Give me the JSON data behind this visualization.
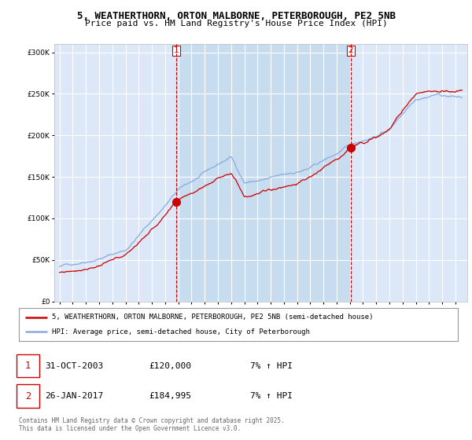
{
  "title": "5, WEATHERTHORN, ORTON MALBORNE, PETERBOROUGH, PE2 5NB",
  "subtitle": "Price paid vs. HM Land Registry's House Price Index (HPI)",
  "legend_line1": "5, WEATHERTHORN, ORTON MALBORNE, PETERBOROUGH, PE2 5NB (semi-detached house)",
  "legend_line2": "HPI: Average price, semi-detached house, City of Peterborough",
  "sale1_label": "1",
  "sale1_date": "31-OCT-2003",
  "sale1_price": "£120,000",
  "sale1_hpi": "7% ↑ HPI",
  "sale2_label": "2",
  "sale2_date": "26-JAN-2017",
  "sale2_price": "£184,995",
  "sale2_hpi": "7% ↑ HPI",
  "footer": "Contains HM Land Registry data © Crown copyright and database right 2025.\nThis data is licensed under the Open Government Licence v3.0.",
  "plot_background": "#dce8f8",
  "highlight_background": "#c8dcf0",
  "red_color": "#cc0000",
  "blue_color": "#88aadd",
  "grid_color": "#ffffff",
  "ylim": [
    0,
    310000
  ],
  "yticks": [
    0,
    50000,
    100000,
    150000,
    200000,
    250000,
    300000
  ],
  "sale1_year": 2003.83,
  "sale2_year": 2017.07,
  "xstart": 1994.6,
  "xend": 2025.9
}
